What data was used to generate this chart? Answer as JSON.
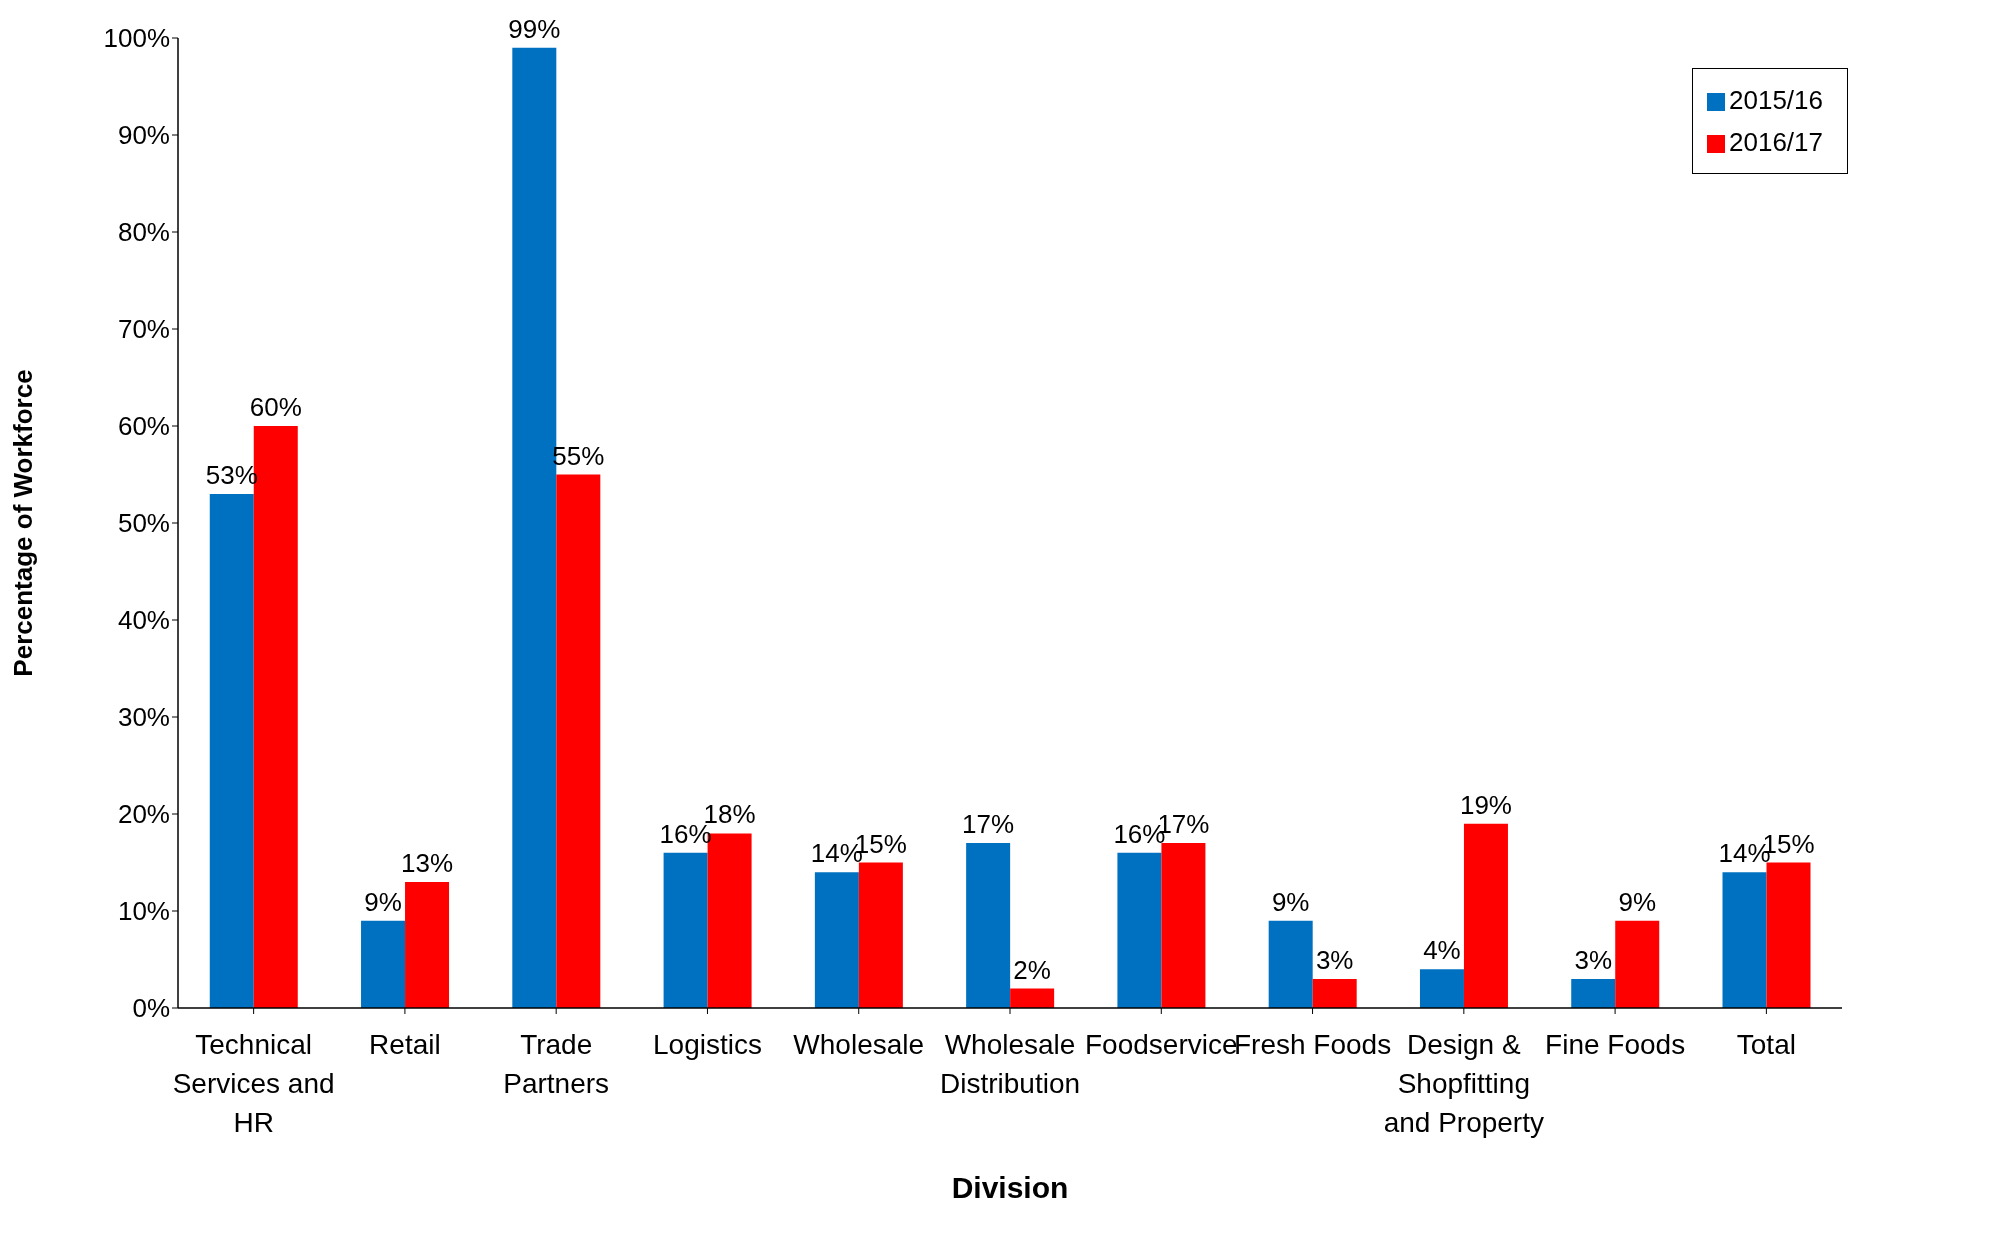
{
  "chart_data": {
    "type": "bar",
    "xlabel": "Division",
    "ylabel": "Percentage of Workforce",
    "categories": [
      "Technical Services and HR",
      "Retail",
      "Trade Partners",
      "Logistics",
      "Wholesale",
      "Wholesale Distribution",
      "Foodservice",
      "Fresh Foods",
      "Design & Shopfitting and Property",
      "Fine Foods",
      "Total"
    ],
    "series": [
      {
        "name": "2015/16",
        "color": "#0070c0",
        "values": [
          53,
          9,
          99,
          16,
          14,
          17,
          16,
          9,
          4,
          3,
          14
        ],
        "value_labels": [
          "53%",
          "9%",
          "99%",
          "16%",
          "14%",
          "17%",
          "16%",
          "9%",
          "4%",
          "3%",
          "14%"
        ]
      },
      {
        "name": "2016/17",
        "color": "#ff0000",
        "values": [
          60,
          13,
          55,
          18,
          15,
          2,
          17,
          3,
          19,
          9,
          15
        ],
        "value_labels": [
          "60%",
          "13%",
          "55%",
          "18%",
          "15%",
          "2%",
          "17%",
          "3%",
          "19%",
          "9%",
          "15%"
        ]
      }
    ],
    "ylim": [
      0,
      100
    ],
    "yticks": [
      {
        "value": 0,
        "label": "0%"
      },
      {
        "value": 10,
        "label": "10%"
      },
      {
        "value": 20,
        "label": "20%"
      },
      {
        "value": 30,
        "label": "30%"
      },
      {
        "value": 40,
        "label": "40%"
      },
      {
        "value": 50,
        "label": "50%"
      },
      {
        "value": 60,
        "label": "60%"
      },
      {
        "value": 70,
        "label": "70%"
      },
      {
        "value": 80,
        "label": "80%"
      },
      {
        "value": 90,
        "label": "90%"
      },
      {
        "value": 100,
        "label": "100%"
      }
    ],
    "grid": false,
    "legend": "top right"
  }
}
